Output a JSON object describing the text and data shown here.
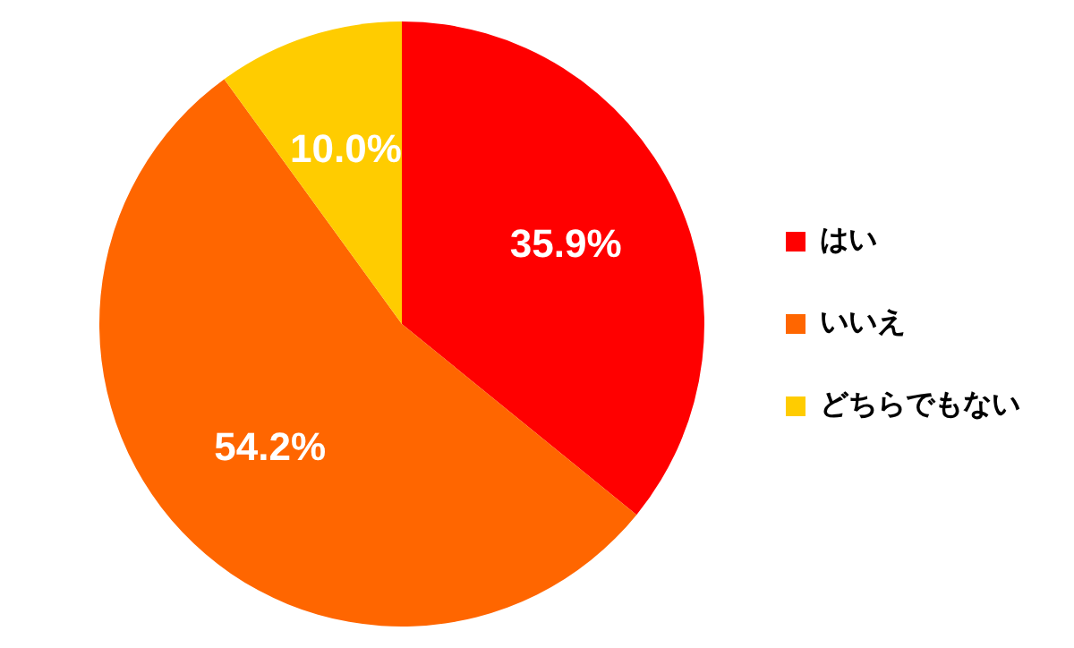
{
  "chart_data": {
    "type": "pie",
    "categories": [
      "はい",
      "いいえ",
      "どちらでもない"
    ],
    "values": [
      35.9,
      54.2,
      10.0
    ],
    "colors": [
      "#ff0000",
      "#ff6600",
      "#ffcc00"
    ],
    "value_labels": [
      "35.9%",
      "54.2%",
      "10.0%"
    ],
    "legend": "right"
  }
}
